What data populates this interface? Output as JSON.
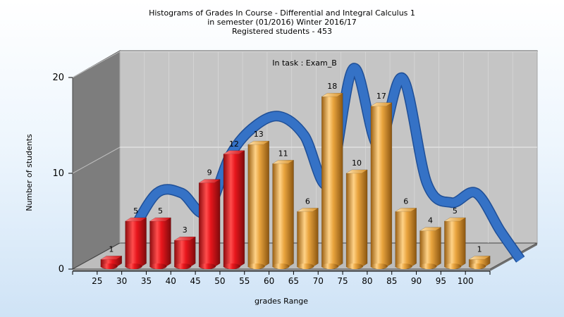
{
  "chart_data": {
    "type": "bar",
    "title": [
      "Histograms of Grades  In Course - Differential and Integral Calculus 1",
      "in semester  (01/2016) Winter 2016/17",
      "Registered students - 453"
    ],
    "subtitle": "In task : Exam_B",
    "xlabel": "grades Range",
    "ylabel": "Number of students",
    "ylim": [
      0,
      20
    ],
    "yticks": [
      0,
      10,
      20
    ],
    "categories": [
      "25",
      "30",
      "35",
      "40",
      "45",
      "50",
      "55",
      "60",
      "65",
      "70",
      "75",
      "80",
      "85",
      "90",
      "95",
      "100"
    ],
    "values": [
      1,
      5,
      5,
      3,
      9,
      12,
      13,
      11,
      6,
      18,
      10,
      17,
      6,
      4,
      5,
      1
    ],
    "bar_colors": [
      "#e8161c",
      "#e8161c",
      "#e8161c",
      "#e8161c",
      "#e8161c",
      "#e8161c",
      "#e9a43e",
      "#e9a43e",
      "#e9a43e",
      "#e9a43e",
      "#e9a43e",
      "#e9a43e",
      "#e9a43e",
      "#e9a43e",
      "#e9a43e",
      "#e9a43e"
    ],
    "curve_color": "#3572c6",
    "grid": true,
    "legend": "none"
  }
}
